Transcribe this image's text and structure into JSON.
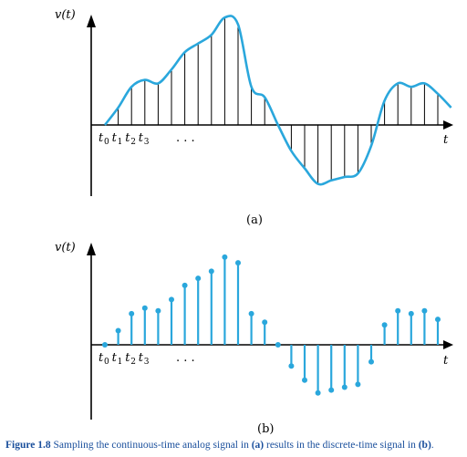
{
  "panel_a": {
    "y_axis_label": "v(t)",
    "x_axis_label": "t",
    "panel_label": "(a)",
    "sample_labels": [
      {
        "base": "t",
        "sub": "0"
      },
      {
        "base": "t",
        "sub": "1"
      },
      {
        "base": "t",
        "sub": "2"
      },
      {
        "base": "t",
        "sub": "3"
      }
    ],
    "ellipsis": ". . ."
  },
  "panel_b": {
    "y_axis_label": "v(t)",
    "x_axis_label": "t",
    "panel_label": "(b)",
    "sample_labels": [
      {
        "base": "t",
        "sub": "0"
      },
      {
        "base": "t",
        "sub": "1"
      },
      {
        "base": "t",
        "sub": "2"
      },
      {
        "base": "t",
        "sub": "3"
      }
    ],
    "ellipsis": ". . ."
  },
  "colors": {
    "signal": "#2aa7dc",
    "sample_lines_a": "#000000",
    "caption": "#1a4f9c"
  },
  "caption": {
    "prefix": "Figure 1.8",
    "t1": " Sampling the continuous-time analog signal in ",
    "b1": "(a)",
    "t2": " results in the discrete-time signal in ",
    "b2": "(b)",
    "t3": "."
  },
  "signal_samples": [
    0,
    10,
    22,
    26,
    24,
    32,
    42,
    47,
    52,
    62,
    58,
    22,
    16,
    0,
    -15,
    -25,
    -34,
    -32,
    -30,
    -28,
    -12,
    14,
    24,
    22,
    24,
    18,
    10
  ]
}
